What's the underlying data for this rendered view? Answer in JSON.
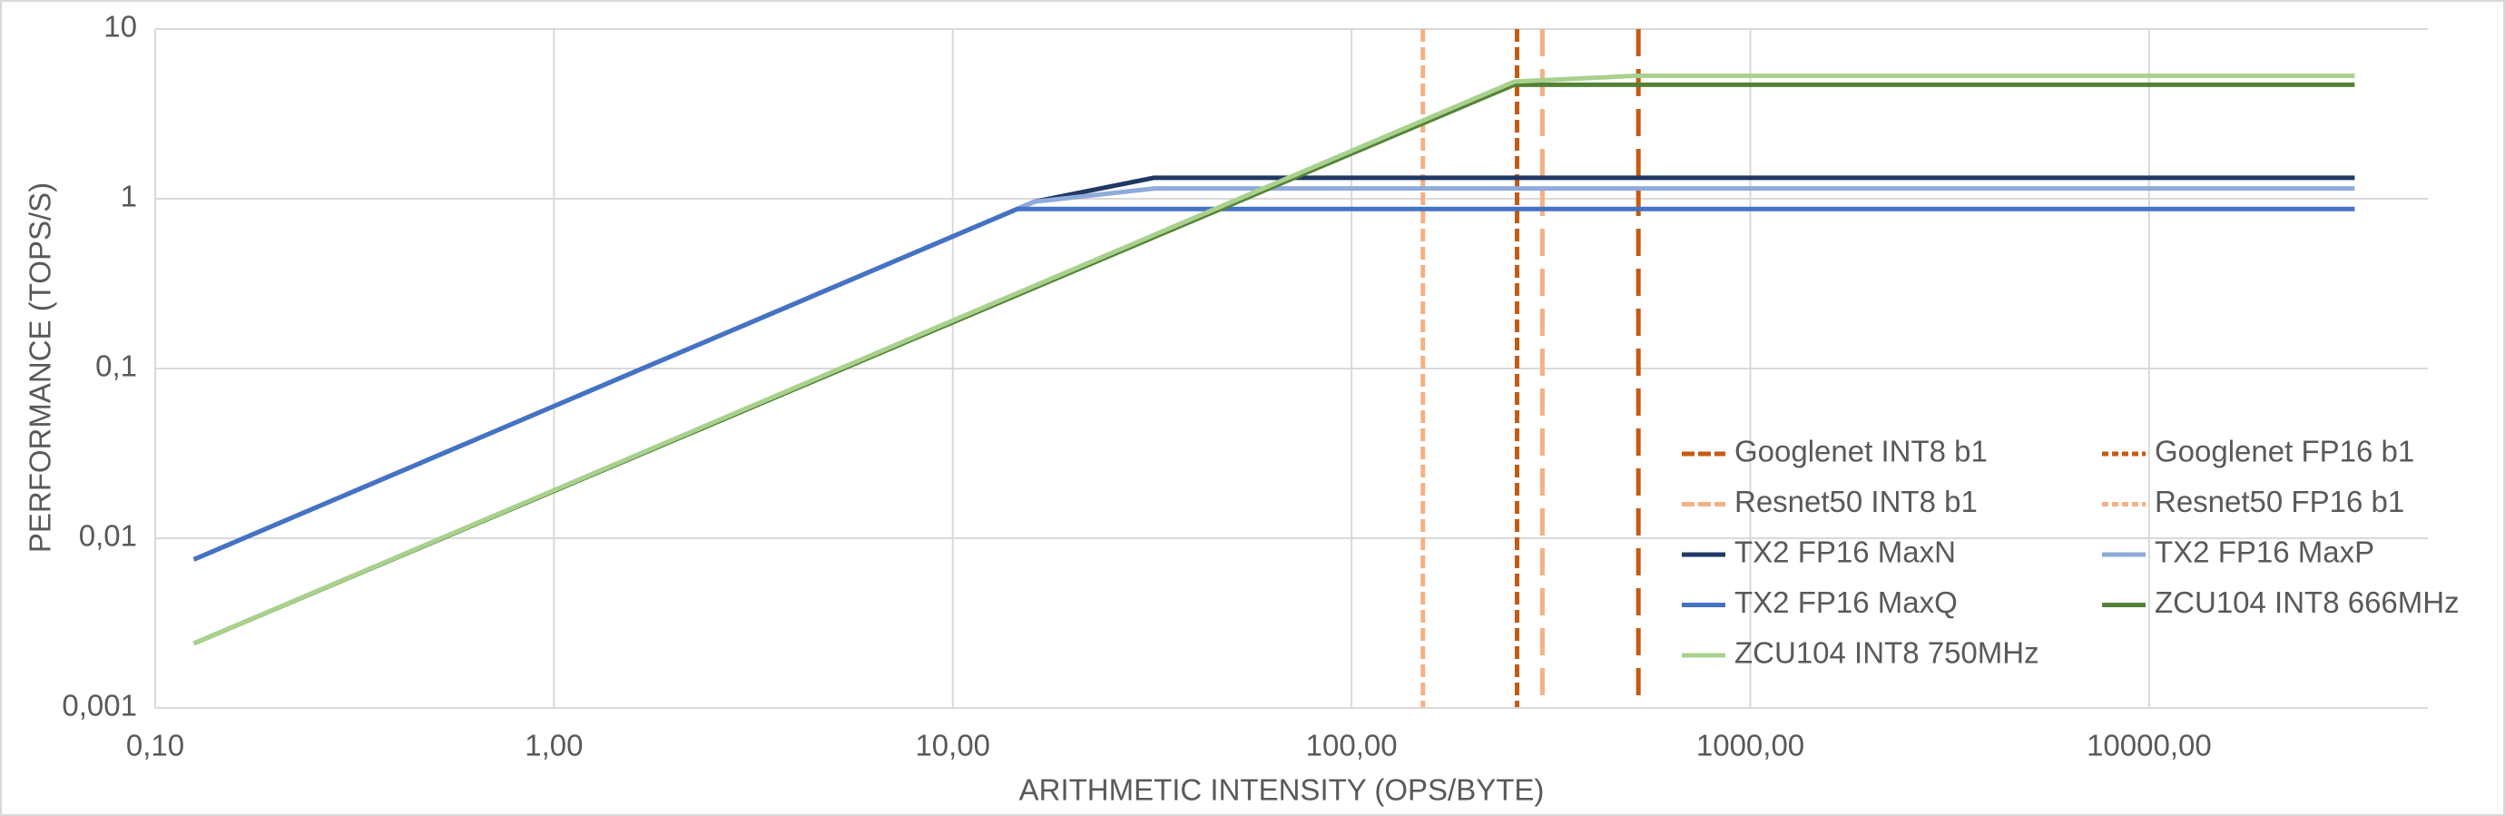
{
  "chart_data": {
    "type": "line",
    "x_label": "ARITHMETIC INTENSITY (OPS/BYTE)",
    "y_label": "PERFORMANCE (TOPS/S)",
    "xscale": "log",
    "yscale": "log",
    "grid": true,
    "legend": "lower right",
    "xlim": [
      0.1,
      50000
    ],
    "ylim": [
      0.001,
      10
    ],
    "xticks": [
      {
        "value": 0.1,
        "label": "0,10"
      },
      {
        "value": 1,
        "label": "1,00"
      },
      {
        "value": 10,
        "label": "10,00"
      },
      {
        "value": 100,
        "label": "100,00"
      },
      {
        "value": 1000,
        "label": "1000,00"
      },
      {
        "value": 10000,
        "label": "10000,00"
      }
    ],
    "yticks": [
      {
        "value": 0.001,
        "label": "0,001"
      },
      {
        "value": 0.01,
        "label": "0,01"
      },
      {
        "value": 0.1,
        "label": "0,1"
      },
      1,
      10
    ],
    "series": [
      {
        "name": "Googlenet INT8 b1",
        "color": "#c55a11",
        "dash": "long",
        "x": 524
      },
      {
        "name": "Googlenet FP16 b1",
        "color": "#c55a11",
        "dash": "short",
        "x": 260
      },
      {
        "name": "Resnet50 INT8 b1",
        "color": "#f4b183",
        "dash": "long",
        "x": 301
      },
      {
        "name": "Resnet50 FP16 b1",
        "color": "#f4b183",
        "dash": "short",
        "x": 151
      },
      {
        "name": "TX2 FP16 MaxN",
        "color": "#203864",
        "x": [
          0.125,
          16,
          32,
          32768
        ],
        "values": [
          0.0075,
          0.96,
          1.33,
          1.33
        ]
      },
      {
        "name": "TX2 FP16 MaxP",
        "color": "#8faadc",
        "x": [
          0.125,
          16,
          32,
          32768
        ],
        "values": [
          0.0075,
          0.96,
          1.15,
          1.15
        ]
      },
      {
        "name": "TX2 FP16 MaxQ",
        "color": "#4472c4",
        "x": [
          0.125,
          14.5,
          32768
        ],
        "values": [
          0.0075,
          0.87,
          0.87
        ]
      },
      {
        "name": "ZCU104 INT8 666MHz",
        "color": "#548235",
        "x": [
          0.125,
          256,
          32768
        ],
        "values": [
          0.0024,
          4.7,
          4.7
        ]
      },
      {
        "name": "ZCU104 INT8 750MHz",
        "color": "#a9d18e",
        "x": [
          0.125,
          256,
          512,
          32768
        ],
        "values": [
          0.0024,
          4.9,
          5.3,
          5.3
        ]
      }
    ]
  }
}
